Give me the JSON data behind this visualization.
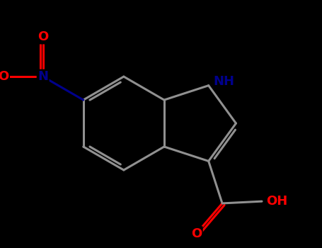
{
  "bg": "#000000",
  "bond_color": "#909090",
  "N_color": "#00008B",
  "O_color": "#FF0000",
  "lw": 2.2,
  "fs_label": 13,
  "figsize": [
    4.55,
    3.5
  ],
  "dpi": 100,
  "xlim": [
    0,
    4.55
  ],
  "ylim": [
    0,
    3.5
  ]
}
